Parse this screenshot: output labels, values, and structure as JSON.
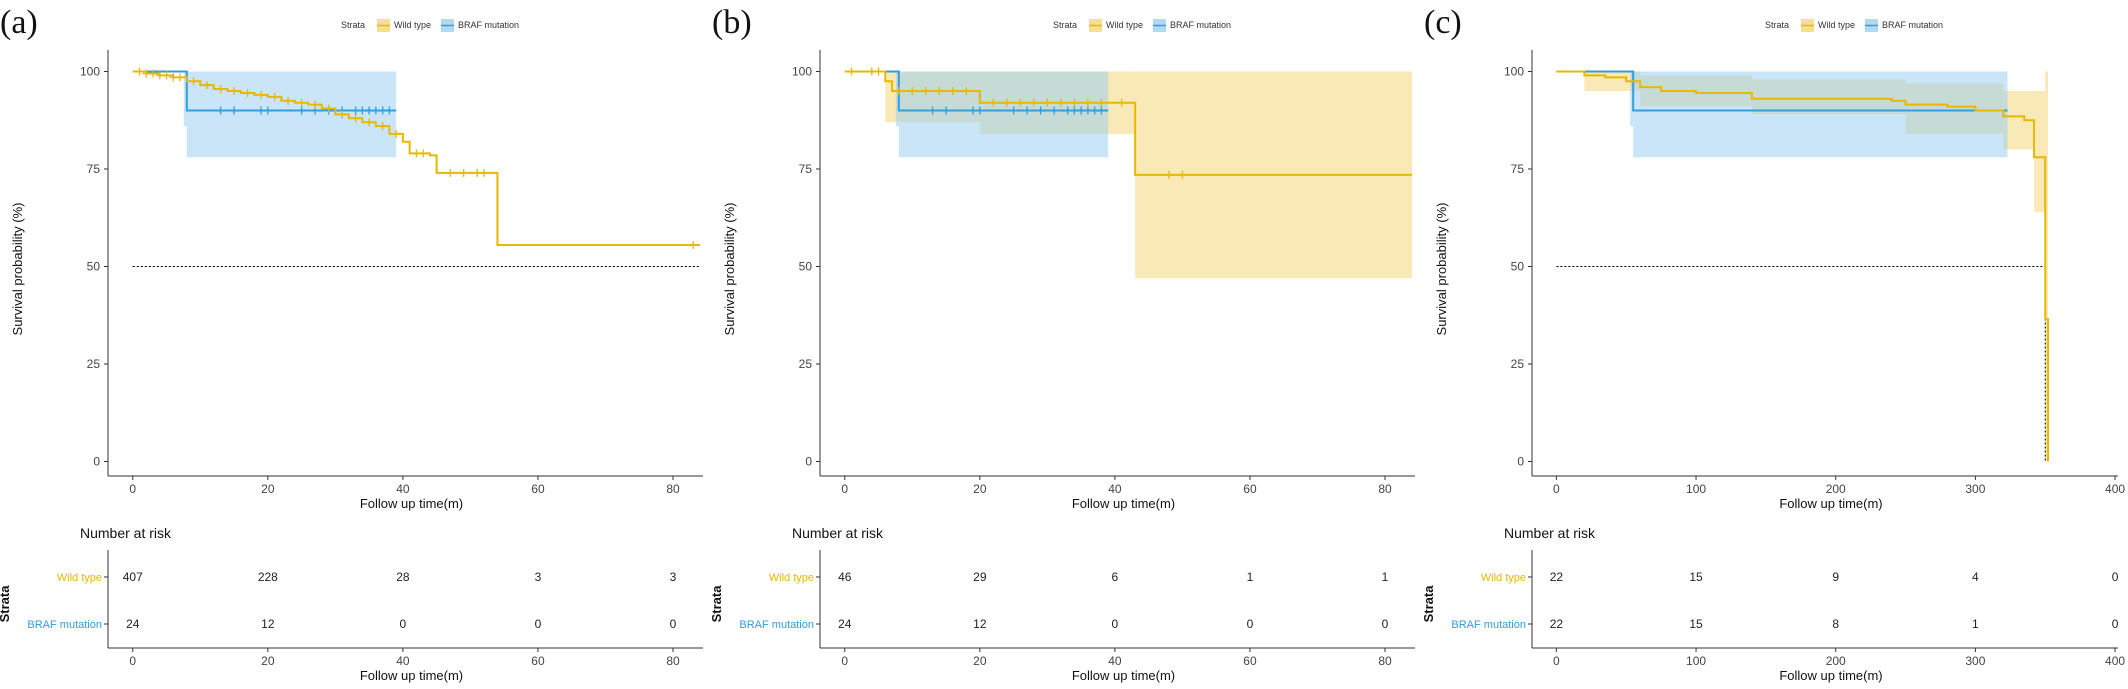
{
  "colors": {
    "wild_type": "#E7B800",
    "braf": "#2E9FDF",
    "ci_wild": "#F2D77A",
    "ci_braf": "#9ED0F0",
    "axis": "#333333"
  },
  "legend": {
    "title": "Strata",
    "items": [
      "Wild type",
      "BRAF mutation"
    ]
  },
  "risk_table": {
    "title": "Number at risk",
    "strata_axis_label": "Strata",
    "row_labels": [
      "Wild type",
      "BRAF mutation"
    ]
  },
  "chart_data": [
    {
      "type": "line",
      "panel_label": "(a)",
      "xlabel": "Follow up time(m)",
      "ylabel": "Survival probability (%)",
      "xlim": [
        0,
        84
      ],
      "ylim": [
        0,
        100
      ],
      "x_ticks": [
        0,
        20,
        40,
        60,
        80
      ],
      "y_ticks": [
        0,
        25,
        50,
        75,
        100
      ],
      "median_line": {
        "y": 50,
        "x_end": 84
      },
      "series": [
        {
          "name": "Wild type",
          "steps": [
            [
              0,
              100
            ],
            [
              2,
              99.5
            ],
            [
              4,
              99
            ],
            [
              6,
              98.5
            ],
            [
              8,
              97.5
            ],
            [
              10,
              96.5
            ],
            [
              12,
              95.5
            ],
            [
              14,
              95
            ],
            [
              16,
              94.5
            ],
            [
              18,
              94
            ],
            [
              20,
              93.5
            ],
            [
              22,
              92.5
            ],
            [
              24,
              92
            ],
            [
              26,
              91.5
            ],
            [
              28,
              90.5
            ],
            [
              30,
              89
            ],
            [
              32,
              88
            ],
            [
              34,
              87
            ],
            [
              36,
              86
            ],
            [
              38,
              84
            ],
            [
              40,
              82
            ],
            [
              41,
              79
            ],
            [
              44,
              78.5
            ],
            [
              45,
              74
            ],
            [
              54,
              55.5
            ],
            [
              84,
              55.5
            ]
          ],
          "censor_x": [
            1,
            2,
            3,
            4,
            5,
            6,
            7,
            9,
            11,
            13,
            15,
            17,
            19,
            21,
            23,
            25,
            27,
            29,
            31,
            33,
            35,
            37,
            39,
            42,
            43,
            47,
            49,
            51,
            52,
            83
          ],
          "ci": null
        },
        {
          "name": "BRAF mutation",
          "steps": [
            [
              0,
              100
            ],
            [
              8,
              100
            ],
            [
              8,
              90
            ],
            [
              39,
              90
            ]
          ],
          "censor_x": [
            13,
            15,
            19,
            20,
            25,
            27,
            29,
            31,
            33,
            34,
            35,
            36,
            37,
            38
          ],
          "ci": {
            "x0": 8,
            "x1": 39,
            "lo": 78,
            "hi": 100,
            "lo_pre": 86
          }
        }
      ],
      "risk_table": {
        "x_ticks": [
          0,
          20,
          40,
          60,
          80
        ],
        "wild_type": [
          407,
          228,
          28,
          3,
          3
        ],
        "braf": [
          24,
          12,
          0,
          0,
          0
        ]
      }
    },
    {
      "type": "line",
      "panel_label": "(b)",
      "xlabel": "Follow up time(m)",
      "ylabel": "Survival probability (%)",
      "xlim": [
        0,
        84
      ],
      "ylim": [
        0,
        100
      ],
      "x_ticks": [
        0,
        20,
        40,
        60,
        80
      ],
      "y_ticks": [
        0,
        25,
        50,
        75,
        100
      ],
      "median_line": null,
      "series": [
        {
          "name": "Wild type",
          "steps": [
            [
              0,
              100
            ],
            [
              6,
              100
            ],
            [
              6,
              97.5
            ],
            [
              7,
              95
            ],
            [
              20,
              95
            ],
            [
              20,
              92
            ],
            [
              43,
              92
            ],
            [
              43,
              73.5
            ],
            [
              84,
              73.5
            ]
          ],
          "censor_x": [
            1,
            4,
            5,
            8,
            10,
            12,
            14,
            16,
            18,
            22,
            24,
            26,
            28,
            30,
            32,
            34,
            36,
            38,
            41,
            48,
            50
          ],
          "ci": {
            "segments": [
              [
                6,
                20,
                87,
                100
              ],
              [
                20,
                43,
                84,
                100
              ],
              [
                43,
                84,
                47,
                100
              ]
            ]
          }
        },
        {
          "name": "BRAF mutation",
          "steps": [
            [
              0,
              100
            ],
            [
              8,
              100
            ],
            [
              8,
              90
            ],
            [
              39,
              90
            ]
          ],
          "censor_x": [
            13,
            15,
            19,
            20,
            25,
            27,
            29,
            31,
            33,
            34,
            35,
            36,
            37,
            38
          ],
          "ci": {
            "x0": 8,
            "x1": 39,
            "lo": 78,
            "hi": 100,
            "lo_pre": 86
          }
        }
      ],
      "risk_table": {
        "x_ticks": [
          0,
          20,
          40,
          60,
          80
        ],
        "wild_type": [
          46,
          29,
          6,
          1,
          1
        ],
        "braf": [
          24,
          12,
          0,
          0,
          0
        ]
      }
    },
    {
      "type": "line",
      "panel_label": "(c)",
      "xlabel": "Follow up time(m)",
      "ylabel": "Survival probability (%)",
      "xlim": [
        0,
        400
      ],
      "ylim": [
        0,
        100
      ],
      "x_ticks": [
        0,
        100,
        200,
        300,
        400
      ],
      "y_ticks": [
        0,
        25,
        50,
        75,
        100
      ],
      "median_line": {
        "y": 50,
        "x_end": 350
      },
      "series": [
        {
          "name": "Wild type",
          "steps": [
            [
              0,
              100
            ],
            [
              20,
              100
            ],
            [
              20,
              99
            ],
            [
              35,
              98.5
            ],
            [
              50,
              97.5
            ],
            [
              60,
              96
            ],
            [
              75,
              95
            ],
            [
              100,
              94.5
            ],
            [
              140,
              93
            ],
            [
              240,
              92.5
            ],
            [
              250,
              91.5
            ],
            [
              280,
              91
            ],
            [
              300,
              90
            ],
            [
              320,
              88.5
            ],
            [
              335,
              87.5
            ],
            [
              342,
              78
            ],
            [
              350,
              78
            ],
            [
              350,
              36.5
            ],
            [
              352,
              36.5
            ],
            [
              352,
              0
            ]
          ],
          "censor_x": [],
          "ci": {
            "segments": [
              [
                20,
                60,
                95,
                100
              ],
              [
                60,
                140,
                91,
                99
              ],
              [
                140,
                250,
                89,
                98
              ],
              [
                250,
                320,
                84,
                97
              ],
              [
                320,
                342,
                80,
                95
              ],
              [
                342,
                350,
                64,
                95
              ],
              [
                350,
                352,
                0,
                100
              ]
            ]
          }
        },
        {
          "name": "BRAF mutation",
          "steps": [
            [
              0,
              100
            ],
            [
              55,
              100
            ],
            [
              55,
              90
            ],
            [
              323,
              90
            ]
          ],
          "censor_x": [],
          "ci": {
            "x0": 55,
            "x1": 323,
            "lo": 78,
            "hi": 100,
            "lo_pre": 86
          }
        }
      ],
      "risk_table": {
        "x_ticks": [
          0,
          100,
          200,
          300,
          400
        ],
        "wild_type": [
          22,
          15,
          9,
          4,
          0
        ],
        "braf": [
          22,
          15,
          8,
          1,
          0
        ]
      }
    }
  ]
}
